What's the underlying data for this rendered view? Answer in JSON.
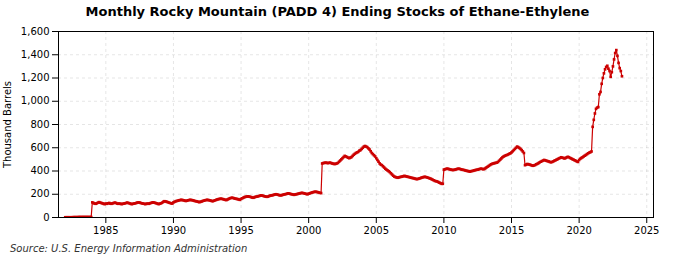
{
  "chart_data": {
    "type": "line",
    "title": "Monthly Rocky Mountain (PADD 4) Ending Stocks of Ethane-Ethylene",
    "ylabel": "Thousand Barrels",
    "caption": "Source: U.S. Energy Information Administration",
    "color": "#cc0000",
    "marker": "square",
    "line_style": "solid",
    "grid": true,
    "xlim": [
      1981.5,
      2025.5
    ],
    "ylim": [
      0,
      1600
    ],
    "xticks": [
      1985,
      1990,
      1995,
      2000,
      2005,
      2010,
      2015,
      2020,
      2025
    ],
    "yticks": [
      0,
      200,
      400,
      600,
      800,
      {
        "value": 1000,
        "label": "1,000"
      },
      {
        "value": 1200,
        "label": "1,200"
      },
      {
        "value": 1400,
        "label": "1,400"
      },
      {
        "value": 1600,
        "label": "1,600"
      }
    ],
    "x": [
      1982.0,
      1982.083,
      1982.167,
      1982.25,
      1982.333,
      1982.417,
      1982.5,
      1982.583,
      1982.667,
      1982.75,
      1982.833,
      1982.917,
      1983.0,
      1983.083,
      1983.167,
      1983.25,
      1983.333,
      1983.417,
      1983.5,
      1983.583,
      1983.667,
      1983.75,
      1983.833,
      1983.917,
      1984.0,
      1984.083,
      1984.167,
      1984.25,
      1984.333,
      1984.417,
      1984.5,
      1984.583,
      1984.667,
      1984.75,
      1984.833,
      1984.917,
      1985.0,
      1985.083,
      1985.167,
      1985.25,
      1985.333,
      1985.417,
      1985.5,
      1985.583,
      1985.667,
      1985.75,
      1985.833,
      1985.917,
      1986.0,
      1986.083,
      1986.167,
      1986.25,
      1986.333,
      1986.417,
      1986.5,
      1986.583,
      1986.667,
      1986.75,
      1986.833,
      1986.917,
      1987.0,
      1987.083,
      1987.167,
      1987.25,
      1987.333,
      1987.417,
      1987.5,
      1987.583,
      1987.667,
      1987.75,
      1987.833,
      1987.917,
      1988.0,
      1988.083,
      1988.167,
      1988.25,
      1988.333,
      1988.417,
      1988.5,
      1988.583,
      1988.667,
      1988.75,
      1988.833,
      1988.917,
      1989.0,
      1989.083,
      1989.167,
      1989.25,
      1989.333,
      1989.417,
      1989.5,
      1989.583,
      1989.667,
      1989.75,
      1989.833,
      1989.917,
      1990.0,
      1990.083,
      1990.167,
      1990.25,
      1990.333,
      1990.417,
      1990.5,
      1990.583,
      1990.667,
      1990.75,
      1990.833,
      1990.917,
      1991.0,
      1991.083,
      1991.167,
      1991.25,
      1991.333,
      1991.417,
      1991.5,
      1991.583,
      1991.667,
      1991.75,
      1991.833,
      1991.917,
      1992.0,
      1992.083,
      1992.167,
      1992.25,
      1992.333,
      1992.417,
      1992.5,
      1992.583,
      1992.667,
      1992.75,
      1992.833,
      1992.917,
      1993.0,
      1993.083,
      1993.167,
      1993.25,
      1993.333,
      1993.417,
      1993.5,
      1993.583,
      1993.667,
      1993.75,
      1993.833,
      1993.917,
      1994.0,
      1994.083,
      1994.167,
      1994.25,
      1994.333,
      1994.417,
      1994.5,
      1994.583,
      1994.667,
      1994.75,
      1994.833,
      1994.917,
      1995.0,
      1995.083,
      1995.167,
      1995.25,
      1995.333,
      1995.417,
      1995.5,
      1995.583,
      1995.667,
      1995.75,
      1995.833,
      1995.917,
      1996.0,
      1996.083,
      1996.167,
      1996.25,
      1996.333,
      1996.417,
      1996.5,
      1996.583,
      1996.667,
      1996.75,
      1996.833,
      1996.917,
      1997.0,
      1997.083,
      1997.167,
      1997.25,
      1997.333,
      1997.417,
      1997.5,
      1997.583,
      1997.667,
      1997.75,
      1997.833,
      1997.917,
      1998.0,
      1998.083,
      1998.167,
      1998.25,
      1998.333,
      1998.417,
      1998.5,
      1998.583,
      1998.667,
      1998.75,
      1998.833,
      1998.917,
      1999.0,
      1999.083,
      1999.167,
      1999.25,
      1999.333,
      1999.417,
      1999.5,
      1999.583,
      1999.667,
      1999.75,
      1999.833,
      1999.917,
      2000.0,
      2000.083,
      2000.167,
      2000.25,
      2000.333,
      2000.417,
      2000.5,
      2000.583,
      2000.667,
      2000.75,
      2000.833,
      2000.917,
      2001.0,
      2001.083,
      2001.167,
      2001.25,
      2001.333,
      2001.417,
      2001.5,
      2001.583,
      2001.667,
      2001.75,
      2001.833,
      2001.917,
      2002.0,
      2002.083,
      2002.167,
      2002.25,
      2002.333,
      2002.417,
      2002.5,
      2002.583,
      2002.667,
      2002.75,
      2002.833,
      2002.917,
      2003.0,
      2003.083,
      2003.167,
      2003.25,
      2003.333,
      2003.417,
      2003.5,
      2003.583,
      2003.667,
      2003.75,
      2003.833,
      2003.917,
      2004.0,
      2004.083,
      2004.167,
      2004.25,
      2004.333,
      2004.417,
      2004.5,
      2004.583,
      2004.667,
      2004.75,
      2004.833,
      2004.917,
      2005.0,
      2005.083,
      2005.167,
      2005.25,
      2005.333,
      2005.417,
      2005.5,
      2005.583,
      2005.667,
      2005.75,
      2005.833,
      2005.917,
      2006.0,
      2006.083,
      2006.167,
      2006.25,
      2006.333,
      2006.417,
      2006.5,
      2006.583,
      2006.667,
      2006.75,
      2006.833,
      2006.917,
      2007.0,
      2007.083,
      2007.167,
      2007.25,
      2007.333,
      2007.417,
      2007.5,
      2007.583,
      2007.667,
      2007.75,
      2007.833,
      2007.917,
      2008.0,
      2008.083,
      2008.167,
      2008.25,
      2008.333,
      2008.417,
      2008.5,
      2008.583,
      2008.667,
      2008.75,
      2008.833,
      2008.917,
      2009.0,
      2009.083,
      2009.167,
      2009.25,
      2009.333,
      2009.417,
      2009.5,
      2009.583,
      2009.667,
      2009.75,
      2009.833,
      2009.917,
      2010.0,
      2010.083,
      2010.167,
      2010.25,
      2010.333,
      2010.417,
      2010.5,
      2010.583,
      2010.667,
      2010.75,
      2010.833,
      2010.917,
      2011.0,
      2011.083,
      2011.167,
      2011.25,
      2011.333,
      2011.417,
      2011.5,
      2011.583,
      2011.667,
      2011.75,
      2011.833,
      2011.917,
      2012.0,
      2012.083,
      2012.167,
      2012.25,
      2012.333,
      2012.417,
      2012.5,
      2012.583,
      2012.667,
      2012.75,
      2012.833,
      2012.917,
      2013.0,
      2013.083,
      2013.167,
      2013.25,
      2013.333,
      2013.417,
      2013.5,
      2013.583,
      2013.667,
      2013.75,
      2013.833,
      2013.917,
      2014.0,
      2014.083,
      2014.167,
      2014.25,
      2014.333,
      2014.417,
      2014.5,
      2014.583,
      2014.667,
      2014.75,
      2014.833,
      2014.917,
      2015.0,
      2015.083,
      2015.167,
      2015.25,
      2015.333,
      2015.417,
      2015.5,
      2015.583,
      2015.667,
      2015.75,
      2015.833,
      2015.917,
      2016.0,
      2016.083,
      2016.167,
      2016.25,
      2016.333,
      2016.417,
      2016.5,
      2016.583,
      2016.667,
      2016.75,
      2016.833,
      2016.917,
      2017.0,
      2017.083,
      2017.167,
      2017.25,
      2017.333,
      2017.417,
      2017.5,
      2017.583,
      2017.667,
      2017.75,
      2017.833,
      2017.917,
      2018.0,
      2018.083,
      2018.167,
      2018.25,
      2018.333,
      2018.417,
      2018.5,
      2018.583,
      2018.667,
      2018.75,
      2018.833,
      2018.917,
      2019.0,
      2019.083,
      2019.167,
      2019.25,
      2019.333,
      2019.417,
      2019.5,
      2019.583,
      2019.667,
      2019.75,
      2019.833,
      2019.917,
      2020.0,
      2020.083,
      2020.167,
      2020.25,
      2020.333,
      2020.417,
      2020.5,
      2020.583,
      2020.667,
      2020.75,
      2020.833,
      2020.917,
      2021.0,
      2021.083,
      2021.167,
      2021.25,
      2021.333,
      2021.417,
      2021.5,
      2021.583,
      2021.667,
      2021.75,
      2021.833,
      2021.917,
      2022.0,
      2022.083,
      2022.167,
      2022.25,
      2022.333,
      2022.417,
      2022.5,
      2022.583,
      2022.667,
      2022.75,
      2022.833,
      2022.917,
      2023.0,
      2023.083,
      2023.167
    ],
    "values": [
      2,
      2,
      2,
      2,
      2,
      2,
      2,
      3,
      3,
      3,
      3,
      3,
      4,
      4,
      4,
      4,
      4,
      4,
      4,
      4,
      4,
      4,
      4,
      4,
      130,
      125,
      120,
      118,
      122,
      128,
      132,
      128,
      125,
      122,
      118,
      115,
      120,
      118,
      122,
      125,
      120,
      118,
      122,
      125,
      128,
      125,
      120,
      118,
      120,
      118,
      115,
      118,
      120,
      122,
      125,
      128,
      125,
      122,
      118,
      115,
      118,
      120,
      122,
      125,
      128,
      130,
      128,
      125,
      122,
      120,
      118,
      115,
      118,
      120,
      118,
      122,
      125,
      128,
      130,
      128,
      125,
      122,
      118,
      115,
      120,
      122,
      128,
      135,
      140,
      138,
      135,
      132,
      128,
      125,
      122,
      120,
      130,
      135,
      140,
      142,
      145,
      148,
      150,
      152,
      150,
      148,
      145,
      142,
      145,
      148,
      150,
      152,
      150,
      148,
      145,
      142,
      140,
      138,
      135,
      132,
      135,
      138,
      142,
      145,
      148,
      150,
      152,
      150,
      148,
      145,
      142,
      140,
      145,
      148,
      152,
      155,
      158,
      160,
      162,
      160,
      158,
      155,
      152,
      150,
      155,
      160,
      165,
      168,
      170,
      168,
      165,
      162,
      160,
      158,
      155,
      152,
      160,
      165,
      170,
      175,
      178,
      180,
      182,
      180,
      178,
      175,
      172,
      170,
      175,
      178,
      180,
      182,
      185,
      188,
      190,
      188,
      185,
      182,
      180,
      178,
      180,
      185,
      188,
      190,
      192,
      195,
      198,
      200,
      198,
      195,
      192,
      190,
      192,
      195,
      198,
      200,
      202,
      205,
      208,
      205,
      202,
      200,
      198,
      195,
      198,
      200,
      202,
      205,
      208,
      210,
      212,
      210,
      208,
      205,
      202,
      200,
      205,
      208,
      212,
      215,
      218,
      220,
      222,
      220,
      218,
      215,
      212,
      210,
      465,
      468,
      470,
      472,
      470,
      468,
      470,
      472,
      468,
      465,
      462,
      460,
      462,
      465,
      470,
      480,
      490,
      500,
      510,
      520,
      530,
      525,
      520,
      515,
      510,
      515,
      520,
      530,
      540,
      548,
      555,
      560,
      565,
      575,
      580,
      590,
      600,
      610,
      615,
      610,
      605,
      595,
      585,
      570,
      555,
      545,
      535,
      525,
      510,
      495,
      480,
      465,
      455,
      450,
      440,
      430,
      420,
      412,
      405,
      398,
      390,
      380,
      370,
      360,
      352,
      348,
      345,
      342,
      345,
      348,
      350,
      352,
      355,
      358,
      355,
      352,
      350,
      348,
      345,
      342,
      340,
      338,
      335,
      332,
      330,
      332,
      335,
      338,
      342,
      345,
      348,
      350,
      348,
      345,
      342,
      338,
      335,
      330,
      325,
      320,
      315,
      312,
      310,
      305,
      300,
      295,
      290,
      290,
      412,
      415,
      418,
      420,
      418,
      415,
      412,
      410,
      408,
      410,
      412,
      415,
      418,
      420,
      418,
      415,
      412,
      410,
      408,
      405,
      402,
      400,
      398,
      395,
      398,
      400,
      402,
      405,
      408,
      410,
      412,
      415,
      418,
      420,
      418,
      415,
      418,
      425,
      432,
      438,
      445,
      452,
      458,
      462,
      465,
      468,
      470,
      472,
      478,
      488,
      498,
      508,
      518,
      525,
      530,
      535,
      538,
      542,
      548,
      552,
      560,
      570,
      580,
      590,
      600,
      610,
      605,
      598,
      590,
      580,
      568,
      555,
      450,
      455,
      460,
      458,
      455,
      452,
      448,
      445,
      448,
      452,
      458,
      462,
      468,
      475,
      480,
      485,
      490,
      495,
      492,
      488,
      485,
      482,
      478,
      475,
      478,
      482,
      488,
      492,
      498,
      502,
      508,
      512,
      518,
      515,
      512,
      508,
      512,
      518,
      522,
      518,
      512,
      508,
      502,
      498,
      492,
      488,
      482,
      478,
      495,
      505,
      512,
      518,
      525,
      532,
      538,
      545,
      552,
      558,
      562,
      568,
      780,
      840,
      895,
      935,
      945,
      950,
      1060,
      1080,
      1150,
      1200,
      1240,
      1275,
      1295,
      1305,
      1280,
      1260,
      1210,
      1250,
      1300,
      1360,
      1415,
      1440,
      1390,
      1330,
      1285,
      1260,
      1215
    ]
  }
}
